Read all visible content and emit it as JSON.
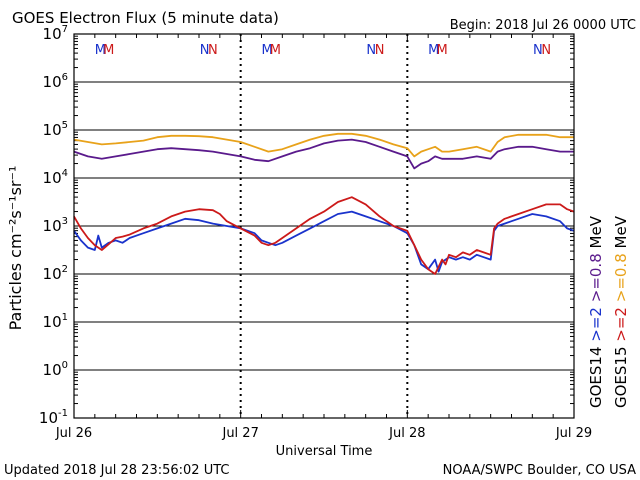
{
  "chart_data": {
    "type": "line",
    "title": "GOES Electron Flux (5 minute data)",
    "begin": "Begin: 2018 Jul 26 0000 UTC",
    "updated": "Updated 2018 Jul 28 23:56:02 UTC",
    "credit": "NOAA/SWPC Boulder, CO USA",
    "xlabel": "Universal Time",
    "ylabel": "Particles cm⁻²s⁻¹sr⁻¹",
    "x_ticks": [
      "Jul 26",
      "Jul 27",
      "Jul 28",
      "Jul 29"
    ],
    "x_range_hours": [
      0,
      72
    ],
    "y_scale": "log",
    "y_exponents": [
      "-1",
      "0",
      "1",
      "2",
      "3",
      "4",
      "5",
      "6",
      "7"
    ],
    "y_range_log10": [
      -1,
      7
    ],
    "threshold_log10": 3,
    "markers": [
      {
        "text": "M",
        "hour": 3.8,
        "color": "#1a33cc"
      },
      {
        "text": "M",
        "hour": 5.0,
        "color": "#cc1a1a"
      },
      {
        "text": "N",
        "hour": 18.8,
        "color": "#1a33cc"
      },
      {
        "text": "N",
        "hour": 20.0,
        "color": "#cc1a1a"
      },
      {
        "text": "M",
        "hour": 27.8,
        "color": "#1a33cc"
      },
      {
        "text": "M",
        "hour": 29.0,
        "color": "#cc1a1a"
      },
      {
        "text": "N",
        "hour": 42.8,
        "color": "#1a33cc"
      },
      {
        "text": "N",
        "hour": 44.0,
        "color": "#cc1a1a"
      },
      {
        "text": "M",
        "hour": 51.8,
        "color": "#1a33cc"
      },
      {
        "text": "M",
        "hour": 53.0,
        "color": "#cc1a1a"
      },
      {
        "text": "N",
        "hour": 66.8,
        "color": "#1a33cc"
      },
      {
        "text": "N",
        "hour": 68.0,
        "color": "#cc1a1a"
      }
    ],
    "legend": [
      {
        "text": "GOES14",
        "color": "#000000"
      },
      {
        "text": ">=2",
        "color": "#1a33cc"
      },
      {
        "text": ">=0.8",
        "color": "#5a1a8c"
      },
      {
        "text": "MeV",
        "color": "#000000"
      },
      {
        "text": "GOES15",
        "color": "#000000"
      },
      {
        "text": ">=2",
        "color": "#cc1a1a"
      },
      {
        "text": ">=0.8",
        "color": "#e8a21a"
      },
      {
        "text": "MeV",
        "color": "#000000"
      }
    ],
    "series": [
      {
        "satellite": "GOES14",
        "energy": ">=2 MeV",
        "color": "#1a33cc",
        "x": [
          0,
          1,
          2,
          3,
          3.5,
          4,
          5,
          6,
          7,
          8,
          10,
          12,
          14,
          16,
          18,
          20,
          22,
          24,
          26,
          27,
          28,
          29,
          30,
          32,
          34,
          36,
          38,
          40,
          42,
          44,
          46,
          48,
          49,
          50,
          51,
          52,
          52.5,
          53,
          54,
          55,
          56,
          57,
          58,
          59,
          60,
          60.5,
          61,
          62,
          63,
          64,
          66,
          68,
          70,
          71,
          72
        ],
        "y": [
          2.9,
          2.7,
          2.55,
          2.5,
          2.8,
          2.55,
          2.65,
          2.7,
          2.65,
          2.75,
          2.85,
          2.95,
          3.05,
          3.15,
          3.12,
          3.05,
          3.0,
          2.95,
          2.85,
          2.7,
          2.65,
          2.6,
          2.65,
          2.8,
          2.95,
          3.1,
          3.25,
          3.3,
          3.2,
          3.1,
          3.0,
          2.85,
          2.6,
          2.2,
          2.1,
          2.3,
          2.05,
          2.25,
          2.35,
          2.3,
          2.35,
          2.3,
          2.4,
          2.35,
          2.3,
          2.9,
          3.0,
          3.05,
          3.1,
          3.15,
          3.25,
          3.2,
          3.1,
          2.95,
          2.9
        ]
      },
      {
        "satellite": "GOES15",
        "energy": ">=2 MeV",
        "color": "#cc1a1a",
        "x": [
          0,
          1,
          2,
          3,
          4,
          5,
          6,
          7,
          8,
          10,
          12,
          14,
          16,
          18,
          20,
          21,
          22,
          24,
          26,
          27,
          28,
          29,
          30,
          32,
          34,
          36,
          38,
          40,
          42,
          44,
          46,
          48,
          49,
          50,
          51,
          52,
          53,
          53.5,
          54,
          55,
          56,
          57,
          58,
          59,
          60,
          60.5,
          61,
          62,
          63,
          64,
          66,
          68,
          70,
          71,
          72
        ],
        "y": [
          3.2,
          2.95,
          2.75,
          2.6,
          2.5,
          2.62,
          2.75,
          2.78,
          2.82,
          2.95,
          3.05,
          3.2,
          3.3,
          3.35,
          3.33,
          3.25,
          3.1,
          2.95,
          2.8,
          2.65,
          2.6,
          2.65,
          2.75,
          2.95,
          3.15,
          3.3,
          3.5,
          3.6,
          3.45,
          3.2,
          3.0,
          2.9,
          2.6,
          2.3,
          2.1,
          2.0,
          2.3,
          2.2,
          2.4,
          2.35,
          2.45,
          2.4,
          2.5,
          2.45,
          2.4,
          2.95,
          3.05,
          3.15,
          3.2,
          3.25,
          3.35,
          3.45,
          3.45,
          3.35,
          3.3
        ]
      },
      {
        "satellite": "GOES14",
        "energy": ">=0.8 MeV",
        "color": "#5a1a8c",
        "x": [
          0,
          2,
          4,
          6,
          8,
          10,
          12,
          14,
          16,
          18,
          20,
          22,
          24,
          26,
          28,
          30,
          32,
          34,
          36,
          38,
          40,
          42,
          44,
          46,
          48,
          49,
          50,
          51,
          52,
          53,
          54,
          56,
          58,
          60,
          61,
          62,
          64,
          66,
          68,
          70,
          72
        ],
        "y": [
          4.55,
          4.45,
          4.4,
          4.45,
          4.5,
          4.55,
          4.6,
          4.62,
          4.6,
          4.58,
          4.55,
          4.5,
          4.45,
          4.38,
          4.35,
          4.45,
          4.55,
          4.62,
          4.72,
          4.78,
          4.8,
          4.75,
          4.65,
          4.55,
          4.45,
          4.2,
          4.3,
          4.35,
          4.45,
          4.4,
          4.4,
          4.4,
          4.45,
          4.4,
          4.55,
          4.6,
          4.65,
          4.65,
          4.6,
          4.55,
          4.55
        ]
      },
      {
        "satellite": "GOES15",
        "energy": ">=0.8 MeV",
        "color": "#e8a21a",
        "x": [
          0,
          2,
          4,
          6,
          8,
          10,
          12,
          14,
          16,
          18,
          20,
          22,
          24,
          26,
          28,
          30,
          32,
          34,
          36,
          38,
          40,
          42,
          44,
          46,
          48,
          49,
          50,
          51,
          52,
          53,
          54,
          56,
          58,
          60,
          61,
          62,
          64,
          66,
          68,
          70,
          72
        ],
        "y": [
          4.8,
          4.75,
          4.7,
          4.72,
          4.75,
          4.78,
          4.85,
          4.88,
          4.88,
          4.87,
          4.85,
          4.8,
          4.75,
          4.65,
          4.55,
          4.6,
          4.7,
          4.8,
          4.88,
          4.92,
          4.92,
          4.88,
          4.8,
          4.7,
          4.62,
          4.45,
          4.55,
          4.6,
          4.65,
          4.55,
          4.55,
          4.6,
          4.65,
          4.55,
          4.75,
          4.85,
          4.9,
          4.9,
          4.9,
          4.85,
          4.85
        ]
      }
    ]
  }
}
